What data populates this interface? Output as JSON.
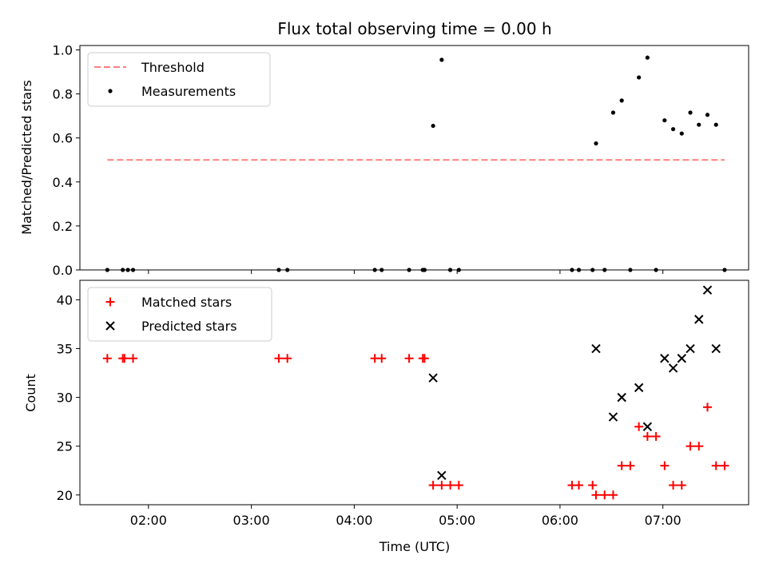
{
  "chart_data": [
    {
      "type": "scatter",
      "title": "Flux total observing time = 0.00 h",
      "ylabel": "Matched/Predicted stars",
      "xlabel": "",
      "xlim": [
        "01:20",
        "07:50"
      ],
      "ylim": [
        0,
        1.02
      ],
      "yticks": [
        0.0,
        0.2,
        0.4,
        0.6,
        0.8,
        1.0
      ],
      "ytick_labels": [
        "0.0",
        "0.2",
        "0.4",
        "0.6",
        "0.8",
        "1.0"
      ],
      "xticks": [
        "02:00",
        "03:00",
        "04:00",
        "05:00",
        "06:00",
        "07:00"
      ],
      "legend": {
        "placement": "upper-left",
        "entries": [
          "Threshold",
          "Measurements"
        ]
      },
      "threshold": {
        "name": "Threshold",
        "y": 0.5,
        "x": [
          "01:36",
          "07:36"
        ],
        "color": "#ff7f7f",
        "style": "dashed"
      },
      "series": [
        {
          "name": "Measurements",
          "color": "#000000",
          "marker": "dot",
          "points": [
            [
              "01:36",
              0
            ],
            [
              "01:45",
              0
            ],
            [
              "01:48",
              0
            ],
            [
              "01:51",
              0
            ],
            [
              "03:16",
              0
            ],
            [
              "03:21",
              0
            ],
            [
              "04:12",
              0
            ],
            [
              "04:16",
              0
            ],
            [
              "04:32",
              0
            ],
            [
              "04:40",
              0
            ],
            [
              "04:41",
              0
            ],
            [
              "04:46",
              0.655
            ],
            [
              "04:51",
              0.955
            ],
            [
              "04:56",
              0
            ],
            [
              "05:01",
              0
            ],
            [
              "06:07",
              0
            ],
            [
              "06:11",
              0
            ],
            [
              "06:19",
              0
            ],
            [
              "06:21",
              0.575
            ],
            [
              "06:26",
              0
            ],
            [
              "06:31",
              0.715
            ],
            [
              "06:36",
              0.77
            ],
            [
              "06:41",
              0
            ],
            [
              "06:46",
              0.875
            ],
            [
              "06:51",
              0.965
            ],
            [
              "06:56",
              0
            ],
            [
              "07:01",
              0.68
            ],
            [
              "07:06",
              0.64
            ],
            [
              "07:11",
              0.62
            ],
            [
              "07:16",
              0.715
            ],
            [
              "07:21",
              0.66
            ],
            [
              "07:26",
              0.705
            ],
            [
              "07:31",
              0.66
            ],
            [
              "07:36",
              0
            ]
          ]
        }
      ]
    },
    {
      "type": "scatter",
      "title": "",
      "ylabel": "Count",
      "xlabel": "Time (UTC)",
      "xlim": [
        "01:20",
        "07:50"
      ],
      "ylim": [
        19,
        42
      ],
      "yticks": [
        20,
        25,
        30,
        35,
        40
      ],
      "ytick_labels": [
        "20",
        "25",
        "30",
        "35",
        "40"
      ],
      "xticks": [
        "02:00",
        "03:00",
        "04:00",
        "05:00",
        "06:00",
        "07:00"
      ],
      "legend": {
        "placement": "upper-left",
        "entries": [
          "Matched stars",
          "Predicted stars"
        ]
      },
      "series": [
        {
          "name": "Matched stars",
          "color": "#ff0000",
          "marker": "plus",
          "points": [
            [
              "01:36",
              34
            ],
            [
              "01:45",
              34
            ],
            [
              "01:46",
              34
            ],
            [
              "01:51",
              34
            ],
            [
              "03:16",
              34
            ],
            [
              "03:21",
              34
            ],
            [
              "04:12",
              34
            ],
            [
              "04:16",
              34
            ],
            [
              "04:32",
              34
            ],
            [
              "04:40",
              34
            ],
            [
              "04:41",
              34
            ],
            [
              "04:46",
              21
            ],
            [
              "04:51",
              21
            ],
            [
              "04:56",
              21
            ],
            [
              "05:01",
              21
            ],
            [
              "06:07",
              21
            ],
            [
              "06:11",
              21
            ],
            [
              "06:19",
              21
            ],
            [
              "06:21",
              20
            ],
            [
              "06:26",
              20
            ],
            [
              "06:31",
              20
            ],
            [
              "06:36",
              23
            ],
            [
              "06:41",
              23
            ],
            [
              "06:46",
              27
            ],
            [
              "06:51",
              26
            ],
            [
              "06:56",
              26
            ],
            [
              "07:01",
              23
            ],
            [
              "07:06",
              21
            ],
            [
              "07:11",
              21
            ],
            [
              "07:16",
              25
            ],
            [
              "07:21",
              25
            ],
            [
              "07:26",
              29
            ],
            [
              "07:31",
              23
            ],
            [
              "07:36",
              23
            ]
          ]
        },
        {
          "name": "Predicted stars",
          "color": "#000000",
          "marker": "x",
          "points": [
            [
              "04:46",
              32
            ],
            [
              "04:51",
              22
            ],
            [
              "06:21",
              35
            ],
            [
              "06:31",
              28
            ],
            [
              "06:36",
              30
            ],
            [
              "06:46",
              31
            ],
            [
              "06:51",
              27
            ],
            [
              "07:01",
              34
            ],
            [
              "07:06",
              33
            ],
            [
              "07:11",
              34
            ],
            [
              "07:16",
              35
            ],
            [
              "07:21",
              38
            ],
            [
              "07:26",
              41
            ],
            [
              "07:31",
              35
            ]
          ]
        }
      ]
    }
  ]
}
